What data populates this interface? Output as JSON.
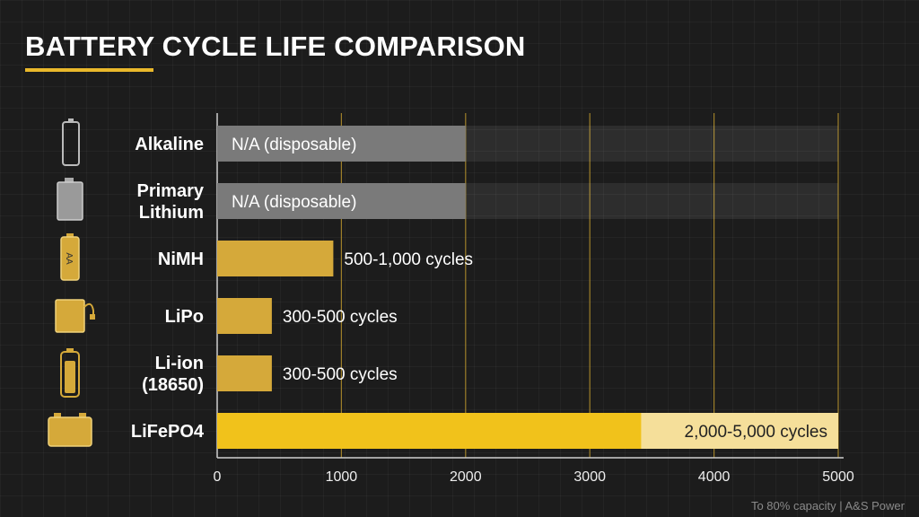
{
  "title": "BATTERY CYCLE LIFE COMPARISON",
  "footer_note": "To 80% capacity | A&S Power",
  "colors": {
    "background": "#1c1c1c",
    "accent": "#e9b82b",
    "bar_gold": "#d5a93a",
    "bar_gold_bright": "#f1c21b",
    "bar_gray": "#7a7a7a",
    "gridline": "#c9a12e"
  },
  "chart_data": {
    "type": "bar",
    "orientation": "horizontal",
    "title": "BATTERY CYCLE LIFE COMPARISON",
    "xlabel": "",
    "ylabel": "",
    "xlim": [
      0,
      5000
    ],
    "xticks": [
      0,
      1000,
      2000,
      3000,
      4000,
      5000
    ],
    "grid": true,
    "categories": [
      {
        "lines": [
          "Alkaline"
        ],
        "icon": "alkaline-battery-icon"
      },
      {
        "lines": [
          "Primary",
          "Lithium"
        ],
        "icon": "primary-lithium-battery-icon"
      },
      {
        "lines": [
          "NiMH"
        ],
        "icon": "aa-nimh-battery-icon"
      },
      {
        "lines": [
          "LiPo"
        ],
        "icon": "lipo-pouch-battery-icon"
      },
      {
        "lines": [
          "Li-ion",
          "(18650)"
        ],
        "icon": "cylindrical-cell-icon"
      },
      {
        "lines": [
          "LiFePO4"
        ],
        "icon": "car-battery-icon"
      }
    ],
    "bars": [
      {
        "min": 0,
        "max": 2000,
        "label": "N/A (disposable)",
        "style": "na"
      },
      {
        "min": 0,
        "max": 2000,
        "label": "N/A (disposable)",
        "style": "na"
      },
      {
        "min": 500,
        "max": 1000,
        "value": 935,
        "label": "500-1,000 cycles",
        "style": "gold"
      },
      {
        "min": 300,
        "max": 500,
        "value": 440,
        "label": "300-500 cycles",
        "style": "gold"
      },
      {
        "min": 300,
        "max": 500,
        "value": 440,
        "label": "300-500 cycles",
        "style": "gold"
      },
      {
        "min": 2000,
        "max": 5000,
        "value": 5000,
        "label": "2,000-5,000 cycles",
        "style": "highlight"
      }
    ]
  }
}
